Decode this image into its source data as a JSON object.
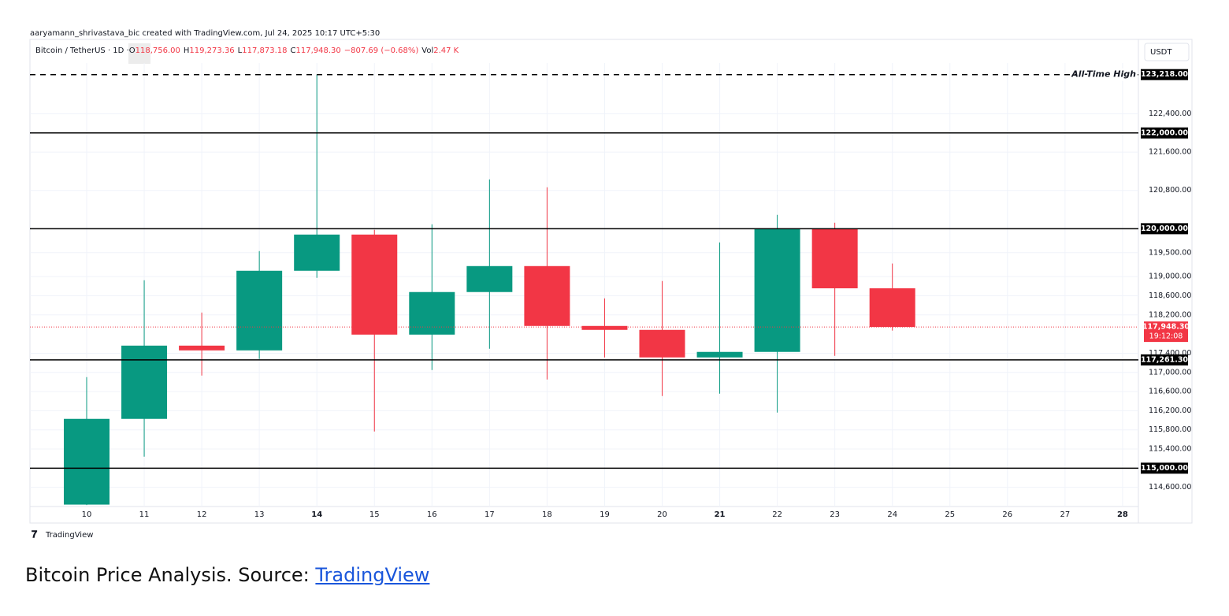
{
  "header": {
    "attribution": "aaryamann_shrivastava_bic created with TradingView.com, Jul 24, 2025 10:17 UTC+5:30"
  },
  "chart_data": {
    "type": "candlestick",
    "symbol": "Bitcoin / TetherUS · 1D ·",
    "ohlc_legend": [
      {
        "label": "O",
        "value": "118,756.00"
      },
      {
        "label": "H",
        "value": "119,273.36"
      },
      {
        "label": "L",
        "value": "117,873.18"
      },
      {
        "label": "C",
        "value": "117,948.30"
      }
    ],
    "change": "−807.69 (−0.68%)",
    "volume": {
      "label": "Vol",
      "value": "2.47 K"
    },
    "currency": "USDT",
    "categories": [
      "10",
      "11",
      "12",
      "13",
      "14",
      "15",
      "16",
      "17",
      "18",
      "19",
      "20",
      "21",
      "22",
      "23",
      "24",
      "25",
      "26",
      "27",
      "28"
    ],
    "open": [
      114240,
      116030,
      117559,
      117460,
      119122,
      119878,
      117789,
      118678,
      119220,
      117970,
      117888,
      117313,
      117428,
      119993,
      118756,
      null,
      null,
      null,
      null
    ],
    "high": [
      116901,
      118924,
      118250,
      119533,
      123218,
      119977,
      120092,
      121030,
      120865,
      118546,
      118908,
      119714,
      120289,
      120125,
      119273.36,
      null,
      null,
      null,
      null
    ],
    "low": [
      114230,
      115240,
      116934,
      117280,
      118974,
      115766,
      117049,
      117493,
      116852,
      117313,
      116507,
      116556,
      116161,
      117345,
      117873.18,
      null,
      null,
      null,
      null
    ],
    "close": [
      116030,
      117559,
      117460,
      119122,
      119878,
      117789,
      118678,
      119220,
      117970,
      117888,
      117313,
      117428,
      119993,
      118756,
      117948.3,
      null,
      null,
      null,
      null
    ],
    "up_color": "#089981",
    "down_color": "#f23645",
    "ylim": [
      114200,
      123460
    ],
    "yticks": [
      {
        "value": 114600,
        "label": "114,600.00"
      },
      {
        "value": 115400,
        "label": "115,400.00"
      },
      {
        "value": 115800,
        "label": "115,800.00"
      },
      {
        "value": 116200,
        "label": "116,200.00"
      },
      {
        "value": 116600,
        "label": "116,600.00"
      },
      {
        "value": 117000,
        "label": "117,000.00"
      },
      {
        "value": 117400,
        "label": "117,400.00"
      },
      {
        "value": 118200,
        "label": "118,200.00"
      },
      {
        "value": 118600,
        "label": "118,600.00"
      },
      {
        "value": 119000,
        "label": "119,000.00"
      },
      {
        "value": 119500,
        "label": "119,500.00"
      },
      {
        "value": 120800,
        "label": "120,800.00"
      },
      {
        "value": 121600,
        "label": "121,600.00"
      },
      {
        "value": 122400,
        "label": "122,400.00"
      }
    ],
    "levels": [
      {
        "value": 123218,
        "label": "123,218.00",
        "dashed": true
      },
      {
        "value": 122000,
        "label": "122,000.00"
      },
      {
        "value": 120000,
        "label": "120,000.00"
      },
      {
        "value": 117261.3,
        "label": "117,261.30"
      },
      {
        "value": 115000,
        "label": "115,000.00"
      }
    ],
    "annotation": "All-Time High",
    "last_price": {
      "value": 117948.3,
      "label": "117,948.30",
      "countdown": "19:12:08"
    },
    "grid": true,
    "brand": "TradingView"
  },
  "caption": {
    "text": "Bitcoin Price Analysis. Source:",
    "link": "TradingView"
  }
}
